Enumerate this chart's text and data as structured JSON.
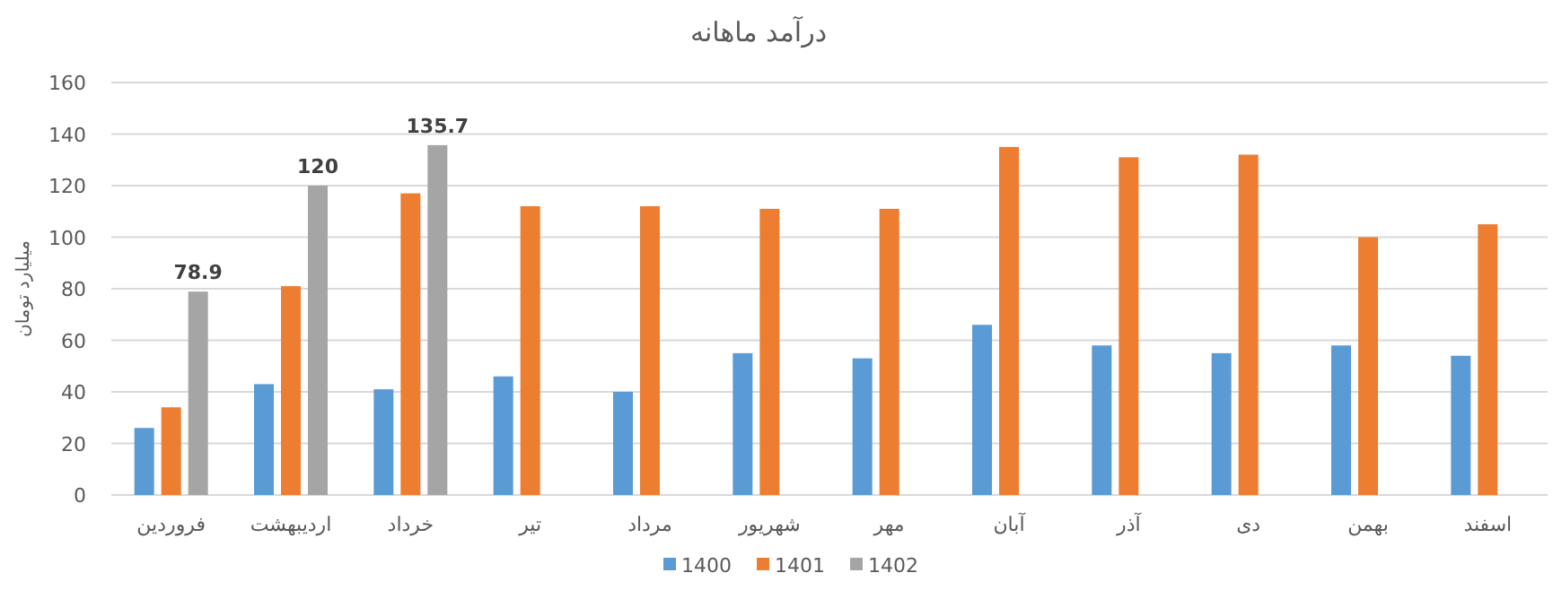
{
  "chart_data": {
    "type": "bar",
    "title": "درآمد ماهانه",
    "ylabel": "میلیارد تومان",
    "categories": [
      "فروردین",
      "اردیبهشت",
      "خرداد",
      "تیر",
      "مرداد",
      "شهریور",
      "مهر",
      "آبان",
      "آذر",
      "دی",
      "بهمن",
      "اسفند"
    ],
    "series": [
      {
        "name": "1400",
        "color": "#5b9bd5",
        "values": [
          26,
          43,
          41,
          46,
          40,
          55,
          53,
          66,
          58,
          55,
          58,
          54
        ]
      },
      {
        "name": "1401",
        "color": "#ed7d31",
        "values": [
          34,
          81,
          117,
          112,
          112,
          111,
          111,
          135,
          131,
          132,
          100,
          105
        ]
      },
      {
        "name": "1402",
        "color": "#a5a5a5",
        "values": [
          78.9,
          120,
          135.7,
          null,
          null,
          null,
          null,
          null,
          null,
          null,
          null,
          null
        ],
        "value_labels": [
          "78.9",
          "120",
          "135.7",
          null,
          null,
          null,
          null,
          null,
          null,
          null,
          null,
          null
        ]
      }
    ],
    "ylim": [
      0,
      160
    ],
    "yticks": [
      0,
      20,
      40,
      60,
      80,
      100,
      120,
      140,
      160
    ],
    "grid": "y",
    "legend": "bottom"
  }
}
